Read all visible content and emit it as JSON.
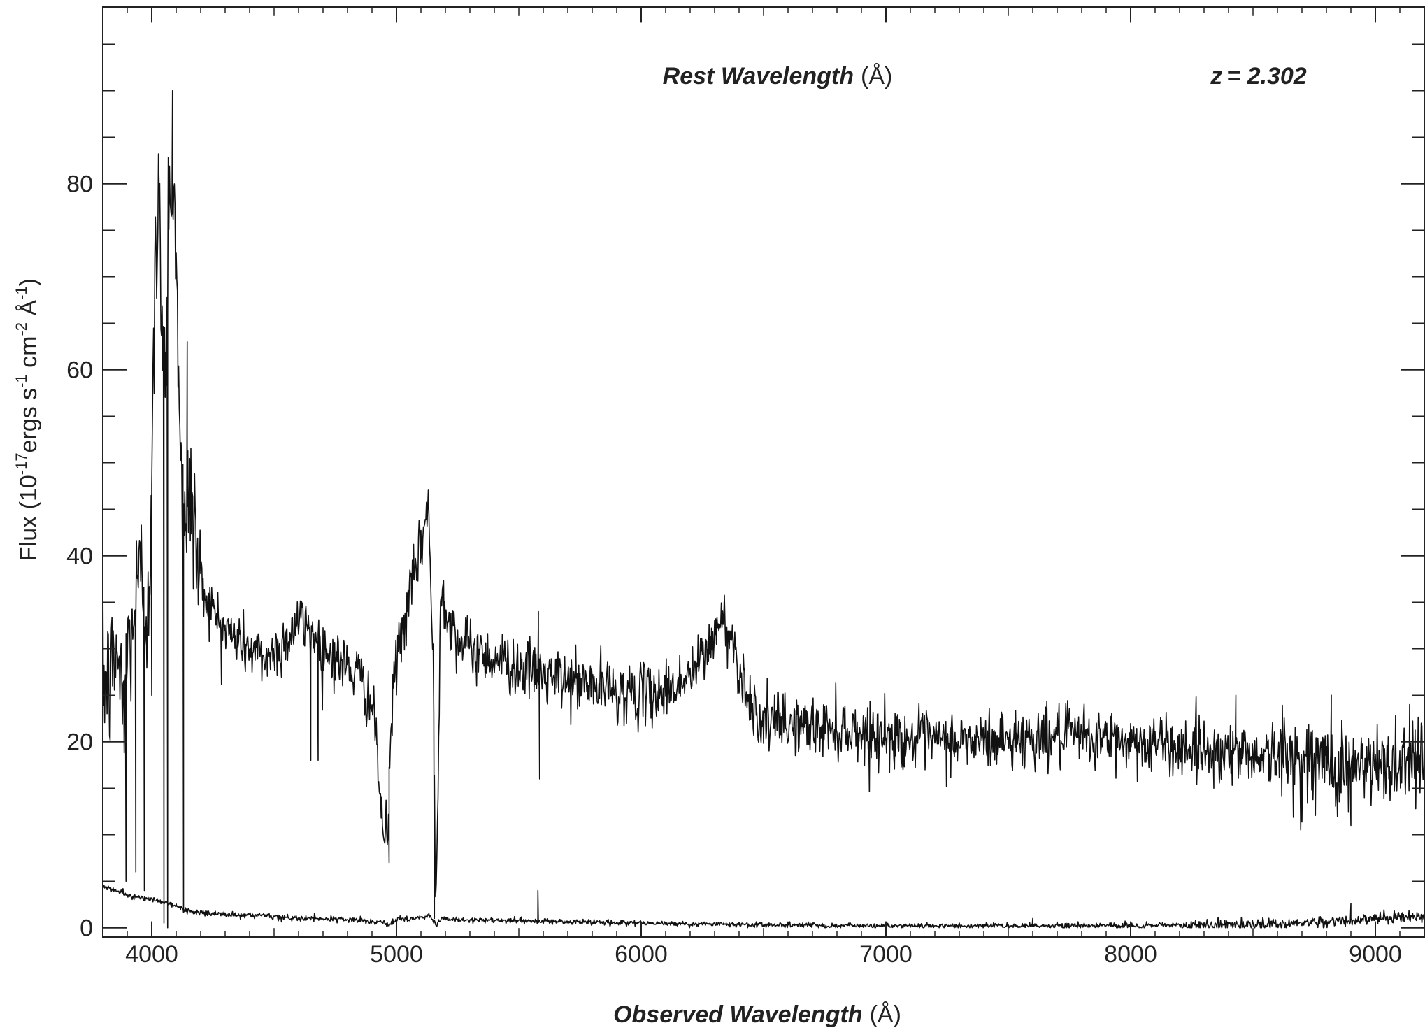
{
  "chart_data": {
    "type": "line",
    "title": "",
    "xlabel": {
      "main": "Observed Wavelength",
      "unit": "(Å)"
    },
    "ylabel": {
      "pre": "Flux (10",
      "exp1": "-17",
      "mid1": "ergs s",
      "exp2": "-1",
      "mid2": " cm",
      "exp3": "-2",
      "mid3": " Å",
      "exp4": "-1",
      "post": ")"
    },
    "top_axis_label": {
      "main": "Rest Wavelength",
      "unit": "(Å)"
    },
    "redshift_label": {
      "z": "z",
      "eq": "= 2.302"
    },
    "xlim": [
      3800,
      9200
    ],
    "ylim": [
      -1,
      99
    ],
    "x_ticks": [
      4000,
      5000,
      6000,
      7000,
      8000,
      9000
    ],
    "x_tick_labels": [
      "4000",
      "5000",
      "6000",
      "7000",
      "8000",
      "9000"
    ],
    "y_ticks": [
      0,
      20,
      40,
      60,
      80
    ],
    "y_tick_labels": [
      "0",
      "20",
      "40",
      "60",
      "80"
    ],
    "grid": false,
    "legend": "none",
    "series": [
      {
        "role": "flux",
        "color": "#111111",
        "anchors_x": [
          3800,
          3830,
          3860,
          3880,
          3900,
          3920,
          3940,
          3960,
          3980,
          4000,
          4015,
          4030,
          4045,
          4060,
          4070,
          4080,
          4095,
          4110,
          4125,
          4140,
          4150,
          4170,
          4200,
          4250,
          4300,
          4350,
          4400,
          4450,
          4500,
          4550,
          4600,
          4650,
          4700,
          4750,
          4800,
          4850,
          4900,
          4920,
          4950,
          4965,
          4980,
          5000,
          5050,
          5100,
          5130,
          5150,
          5160,
          5170,
          5180,
          5190,
          5210,
          5250,
          5300,
          5400,
          5500,
          5600,
          5700,
          5800,
          5900,
          6000,
          6100,
          6200,
          6250,
          6300,
          6330,
          6360,
          6400,
          6450,
          6500,
          6600,
          6700,
          6800,
          6900,
          7000,
          7200,
          7400,
          7600,
          7800,
          8000,
          8200,
          8400,
          8600,
          8800,
          9000,
          9100,
          9200
        ],
        "anchors_y": [
          27,
          26,
          30,
          24,
          29,
          33,
          36,
          38,
          34,
          45,
          72,
          77,
          65,
          60,
          83,
          79,
          76,
          63,
          45,
          40,
          48,
          44,
          37,
          34,
          32,
          31,
          30,
          29,
          29.5,
          31,
          33,
          32,
          30,
          29,
          28,
          27,
          24,
          19,
          9,
          11,
          23,
          29,
          35,
          41,
          46,
          28,
          2,
          14,
          37,
          36,
          34,
          31,
          30,
          29,
          28,
          27,
          26.5,
          26,
          25.5,
          25,
          25.5,
          27,
          29,
          31.5,
          33,
          32,
          28,
          24,
          22,
          22,
          21.5,
          21.5,
          21,
          20.5,
          20,
          20,
          20.5,
          20.5,
          20,
          19.5,
          19,
          18.5,
          17.5,
          17,
          18,
          19
        ],
        "features": [
          {
            "x": 3895,
            "y": 5
          },
          {
            "x": 3935,
            "y": 6
          },
          {
            "x": 3970,
            "y": 4
          },
          {
            "x": 4000,
            "y": 25
          },
          {
            "x": 4050,
            "y": 0.5
          },
          {
            "x": 4065,
            "y": 0
          },
          {
            "x": 4085,
            "y": 90
          },
          {
            "x": 4130,
            "y": 2
          },
          {
            "x": 4145,
            "y": 63
          },
          {
            "x": 4650,
            "y": 18
          },
          {
            "x": 4680,
            "y": 18
          },
          {
            "x": 4970,
            "y": 7
          },
          {
            "x": 5155,
            "y": 1
          },
          {
            "x": 5580,
            "y": 34
          },
          {
            "x": 5585,
            "y": 16
          },
          {
            "x": 8340,
            "y": 15
          },
          {
            "x": 8430,
            "y": 25
          },
          {
            "x": 8820,
            "y": 25
          },
          {
            "x": 8900,
            "y": 11
          },
          {
            "x": 9140,
            "y": 24
          }
        ],
        "noise_sigma": 1.6
      },
      {
        "role": "error",
        "color": "#111111",
        "anchors_x": [
          3800,
          3900,
          4000,
          4050,
          4100,
          4150,
          4200,
          4400,
          4600,
          4800,
          4950,
          4970,
          5000,
          5100,
          5140,
          5160,
          5180,
          5300,
          5600,
          6000,
          6500,
          7000,
          7500,
          8000,
          8500,
          8800,
          9000,
          9200
        ],
        "anchors_y": [
          4.5,
          3.5,
          3,
          2.8,
          2.3,
          1.8,
          1.6,
          1.3,
          1.0,
          0.9,
          0.5,
          0.3,
          0.9,
          1.1,
          1.3,
          0.2,
          0.9,
          0.8,
          0.7,
          0.5,
          0.3,
          0.2,
          0.2,
          0.25,
          0.3,
          0.6,
          1.0,
          1.2
        ],
        "features": [
          {
            "x": 5578,
            "y": 4
          },
          {
            "x": 7600,
            "y": 1
          },
          {
            "x": 8900,
            "y": 2.6
          }
        ],
        "noise_sigma": 0.25
      }
    ]
  }
}
